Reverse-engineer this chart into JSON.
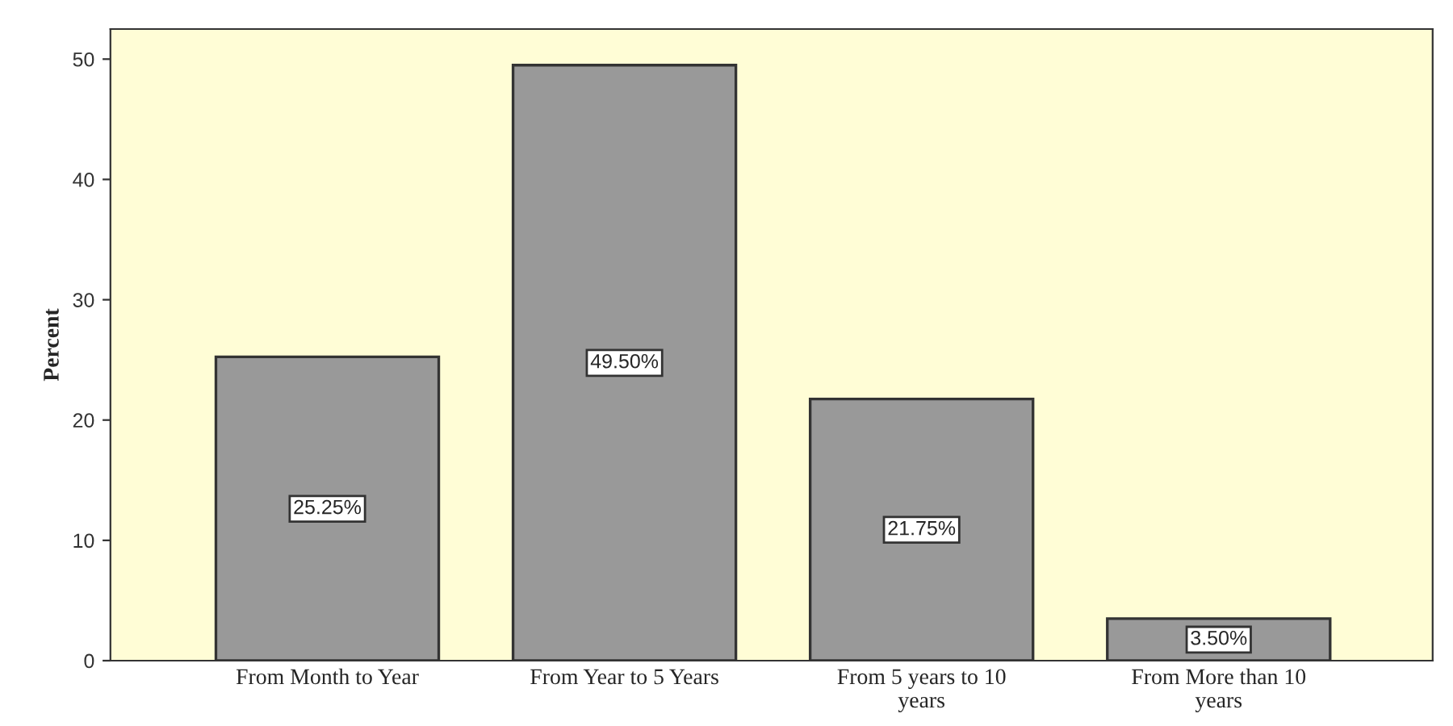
{
  "chart_data": {
    "type": "bar",
    "ylabel": "Percent",
    "categories": [
      "From Month to Year",
      "From Year to 5 Years",
      "From 5 years to 10\nyears",
      "From More than 10\nyears"
    ],
    "values": [
      25.25,
      49.5,
      21.75,
      3.5
    ],
    "value_labels": [
      "25.25%",
      "49.50%",
      "21.75%",
      "3.50%"
    ],
    "color": "#999999",
    "ylim": [
      0,
      52.5
    ],
    "yticks": [
      0,
      10,
      20,
      30,
      40,
      50
    ],
    "grid": false
  }
}
